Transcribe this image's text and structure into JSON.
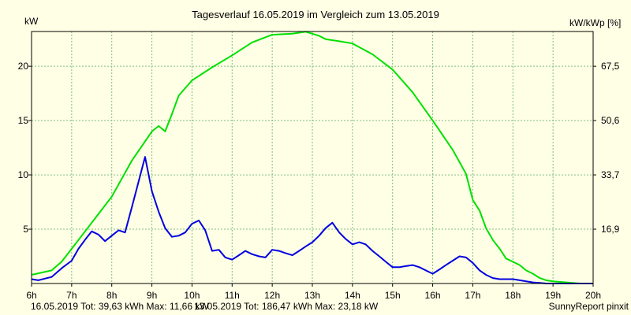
{
  "chart_data": {
    "type": "line",
    "title": "Tagesverlauf 16.05.2019 im Vergleich zum 13.05.2019",
    "ylabel_left": "kW",
    "ylabel_right": "kW/kWp [%]",
    "x_ticks": [
      "6h",
      "7h",
      "8h",
      "9h",
      "10h",
      "11h",
      "12h",
      "13h",
      "14h",
      "15h",
      "16h",
      "17h",
      "18h",
      "19h",
      "20h"
    ],
    "xlim": [
      6,
      20
    ],
    "ylim": [
      0,
      23.2
    ],
    "y_ticks": [
      5,
      10,
      15,
      20
    ],
    "y_right_ticks": [
      "16,9",
      "33,7",
      "50,6",
      "67,5"
    ],
    "grid": true,
    "series": [
      {
        "name": "16.05.2019",
        "color": "#0000e0",
        "x": [
          6,
          6.17,
          6.5,
          6.75,
          7,
          7.17,
          7.33,
          7.5,
          7.67,
          7.83,
          8,
          8.17,
          8.33,
          8.5,
          8.67,
          8.83,
          9,
          9.17,
          9.33,
          9.5,
          9.67,
          9.83,
          10,
          10.17,
          10.33,
          10.5,
          10.67,
          10.83,
          11,
          11.17,
          11.33,
          11.5,
          11.67,
          11.83,
          12,
          12.17,
          12.33,
          12.5,
          12.67,
          12.83,
          13,
          13.17,
          13.33,
          13.5,
          13.67,
          13.83,
          14,
          14.17,
          14.33,
          14.5,
          14.67,
          14.83,
          15,
          15.17,
          15.33,
          15.5,
          15.67,
          15.83,
          16,
          16.17,
          16.33,
          16.5,
          16.67,
          16.83,
          17,
          17.17,
          17.33,
          17.5,
          17.67,
          17.83,
          18,
          18.17,
          18.33,
          18.5,
          18.67,
          18.83,
          19,
          19.17,
          19.33,
          19.5,
          19.67,
          19.83,
          20
        ],
        "values": [
          0.4,
          0.3,
          0.6,
          1.4,
          2.1,
          3.2,
          4.0,
          4.8,
          4.5,
          3.9,
          4.4,
          4.9,
          4.7,
          7.0,
          9.4,
          11.66,
          8.5,
          6.6,
          5.1,
          4.3,
          4.4,
          4.7,
          5.5,
          5.8,
          4.9,
          3.0,
          3.1,
          2.4,
          2.2,
          2.6,
          3.0,
          2.7,
          2.5,
          2.4,
          3.1,
          3.0,
          2.8,
          2.6,
          3.0,
          3.4,
          3.8,
          4.4,
          5.1,
          5.6,
          4.7,
          4.1,
          3.6,
          3.8,
          3.6,
          3.0,
          2.5,
          2.0,
          1.5,
          1.5,
          1.6,
          1.7,
          1.5,
          1.2,
          0.9,
          1.3,
          1.7,
          2.1,
          2.5,
          2.4,
          1.9,
          1.2,
          0.8,
          0.5,
          0.4,
          0.4,
          0.4,
          0.3,
          0.2,
          0.1,
          0.05,
          0.0,
          0.0,
          0.0,
          0.0,
          0.0,
          0.0,
          0.0,
          0.0
        ]
      },
      {
        "name": "13.05.2019",
        "color": "#00e000",
        "x": [
          6,
          6.5,
          6.75,
          7,
          7.5,
          8,
          8.5,
          9,
          9.17,
          9.33,
          9.5,
          9.67,
          10,
          10.5,
          11,
          11.5,
          12,
          12.5,
          12.83,
          13,
          13.17,
          13.33,
          13.67,
          14,
          14.5,
          15,
          15.5,
          16,
          16.5,
          16.83,
          17,
          17.17,
          17.33,
          17.5,
          17.67,
          17.83,
          18,
          18.17,
          18.33,
          18.5,
          18.67,
          18.83,
          19,
          19.33,
          19.67,
          20
        ],
        "values": [
          0.8,
          1.2,
          2.0,
          3.2,
          5.6,
          8.0,
          11.3,
          14.0,
          14.5,
          14.0,
          15.6,
          17.3,
          18.7,
          19.9,
          21.0,
          22.2,
          22.9,
          23.0,
          23.18,
          23.0,
          22.8,
          22.5,
          22.3,
          22.1,
          21.1,
          19.7,
          17.6,
          15.0,
          12.3,
          10.1,
          7.7,
          6.7,
          5.1,
          4.0,
          3.2,
          2.3,
          2.0,
          1.7,
          1.2,
          0.9,
          0.5,
          0.3,
          0.2,
          0.1,
          0.0,
          0.0
        ]
      }
    ]
  },
  "legend_1": {
    "text": "16.05.2019 Tot: 39,63 kWh Max: 11,66 kW",
    "color": "#0000e0"
  },
  "legend_2": {
    "text": "13.05.2019 Tot: 186,47 kWh Max: 23,18 kW",
    "color": "#00e000"
  },
  "footer": "SunnyReport pinxit"
}
